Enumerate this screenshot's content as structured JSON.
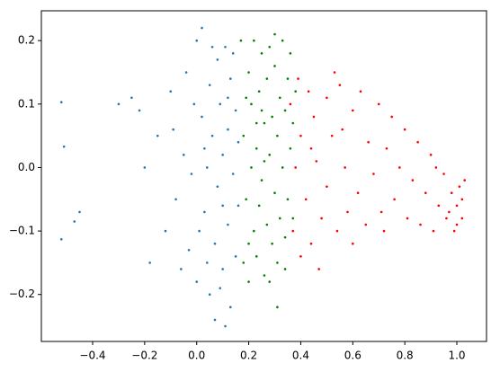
{
  "chart_data": {
    "type": "scatter",
    "xlim": [
      -0.597,
      1.114
    ],
    "ylim": [
      -0.274,
      0.247
    ],
    "xticks": [
      {
        "value": -0.4,
        "label": "−0.4"
      },
      {
        "value": -0.2,
        "label": "−0.2"
      },
      {
        "value": 0,
        "label": "0.0"
      },
      0.2,
      0.4,
      0.6,
      0.8,
      {
        "value": 1,
        "label": "1.0"
      }
    ],
    "yticks": [
      {
        "value": -0.2,
        "label": "−0.2"
      },
      {
        "value": -0.1,
        "label": "−0.1"
      },
      {
        "value": 0,
        "label": "0.0"
      },
      0.1,
      0.2
    ],
    "series": [
      {
        "color": "#1f77b4",
        "x": [
          -0.52,
          -0.51,
          -0.52,
          -0.47,
          -0.45,
          -0.3,
          -0.25,
          -0.22,
          -0.2,
          -0.18,
          -0.15,
          -0.12,
          -0.1,
          -0.08,
          -0.05,
          -0.04,
          -0.03,
          0.0,
          0.0,
          0.02,
          0.02,
          0.03,
          0.04,
          0.05,
          0.05,
          0.06,
          0.07,
          0.08,
          0.08,
          0.09,
          0.1,
          0.1,
          0.11,
          0.12,
          0.12,
          0.13,
          0.13,
          0.14,
          0.15,
          0.15,
          0.16,
          0.16,
          0.07,
          0.11,
          -0.01,
          -0.02,
          0.01,
          0.06,
          0.09,
          0.14,
          -0.06,
          -0.09,
          0.03,
          0.1,
          0.04,
          0.12
        ],
        "y": [
          0.103,
          0.033,
          -0.113,
          -0.085,
          -0.07,
          0.1,
          0.11,
          0.09,
          0.0,
          -0.15,
          0.05,
          -0.1,
          0.12,
          -0.05,
          0.02,
          0.15,
          -0.13,
          0.2,
          -0.18,
          0.22,
          0.08,
          -0.07,
          0.0,
          0.13,
          -0.2,
          0.05,
          -0.12,
          0.17,
          -0.03,
          0.1,
          -0.16,
          0.02,
          0.19,
          -0.09,
          0.06,
          -0.22,
          0.14,
          -0.01,
          0.09,
          -0.14,
          0.04,
          -0.06,
          -0.24,
          -0.25,
          0.1,
          -0.01,
          -0.1,
          0.19,
          -0.19,
          0.18,
          -0.16,
          0.06,
          0.03,
          -0.06,
          -0.15,
          0.11
        ]
      },
      {
        "color": "#008000",
        "x": [
          0.17,
          0.18,
          0.18,
          0.19,
          0.2,
          0.2,
          0.21,
          0.21,
          0.22,
          0.22,
          0.23,
          0.23,
          0.24,
          0.24,
          0.25,
          0.25,
          0.26,
          0.26,
          0.27,
          0.27,
          0.28,
          0.28,
          0.29,
          0.29,
          0.3,
          0.3,
          0.31,
          0.31,
          0.32,
          0.32,
          0.33,
          0.33,
          0.34,
          0.34,
          0.35,
          0.35,
          0.36,
          0.36,
          0.37,
          0.37,
          0.38,
          0.31,
          0.25,
          0.2,
          0.28,
          0.23,
          0.19,
          0.34,
          0.26,
          0.3
        ],
        "y": [
          0.2,
          -0.15,
          0.05,
          -0.05,
          0.15,
          -0.18,
          0.0,
          0.1,
          -0.1,
          0.2,
          0.03,
          -0.14,
          0.12,
          -0.06,
          0.18,
          -0.02,
          0.07,
          -0.17,
          0.14,
          -0.09,
          0.02,
          0.19,
          -0.12,
          0.08,
          -0.04,
          0.16,
          -0.15,
          0.05,
          0.11,
          -0.08,
          0.0,
          0.2,
          -0.11,
          0.09,
          0.14,
          -0.05,
          0.03,
          0.18,
          -0.08,
          0.07,
          0.12,
          -0.22,
          0.09,
          -0.12,
          -0.18,
          0.07,
          0.11,
          -0.16,
          0.01,
          0.21
        ]
      },
      {
        "color": "#ff0000",
        "x": [
          0.36,
          0.37,
          0.38,
          0.39,
          0.4,
          0.4,
          0.42,
          0.43,
          0.44,
          0.45,
          0.46,
          0.48,
          0.5,
          0.5,
          0.52,
          0.54,
          0.55,
          0.57,
          0.58,
          0.6,
          0.62,
          0.63,
          0.65,
          0.66,
          0.68,
          0.7,
          0.71,
          0.73,
          0.75,
          0.76,
          0.78,
          0.8,
          0.81,
          0.83,
          0.85,
          0.86,
          0.88,
          0.9,
          0.91,
          0.93,
          0.95,
          0.96,
          0.98,
          0.99,
          1.0,
          1.01,
          1.02,
          1.02,
          1.03,
          0.47,
          0.53,
          0.72,
          0.92,
          0.6,
          0.44,
          0.56,
          0.97,
          1.0
        ],
        "y": [
          0.1,
          -0.1,
          0.0,
          0.14,
          -0.14,
          0.05,
          -0.05,
          0.12,
          -0.12,
          0.08,
          0.01,
          -0.08,
          0.11,
          -0.03,
          0.05,
          -0.1,
          0.13,
          0.0,
          -0.07,
          0.09,
          -0.04,
          0.12,
          -0.09,
          0.04,
          -0.01,
          0.1,
          -0.07,
          0.03,
          0.08,
          -0.05,
          0.0,
          0.06,
          -0.08,
          -0.02,
          0.04,
          -0.09,
          -0.04,
          0.02,
          -0.1,
          -0.06,
          -0.01,
          -0.08,
          -0.04,
          -0.1,
          -0.06,
          -0.03,
          -0.08,
          -0.05,
          -0.02,
          -0.16,
          0.15,
          -0.1,
          0.0,
          -0.12,
          0.03,
          0.06,
          -0.07,
          -0.09
        ]
      }
    ]
  }
}
